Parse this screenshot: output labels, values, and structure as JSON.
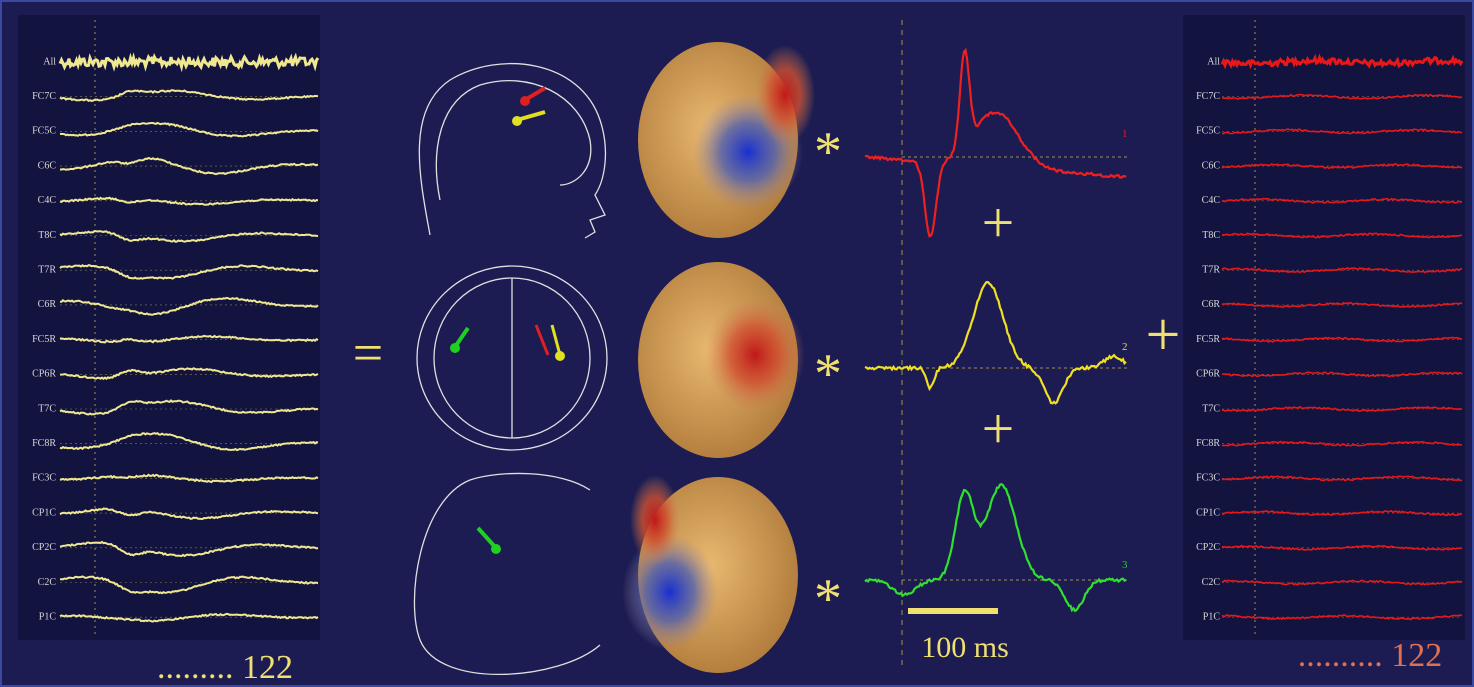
{
  "channels": [
    "All",
    "FC7C",
    "FC5C",
    "C6C",
    "C4C",
    "T8C",
    "T7R",
    "C6R",
    "FC5R",
    "CP6R",
    "T7C",
    "FC8R",
    "FC3C",
    "CP1C",
    "CP2C",
    "C2C",
    "P1C"
  ],
  "left_footer": "......... 122",
  "right_footer": ".......... 122",
  "operators": {
    "equals": "=",
    "times": "*",
    "plus": "+"
  },
  "components": [
    "1",
    "2",
    "3"
  ],
  "scale_label": "100 ms"
}
